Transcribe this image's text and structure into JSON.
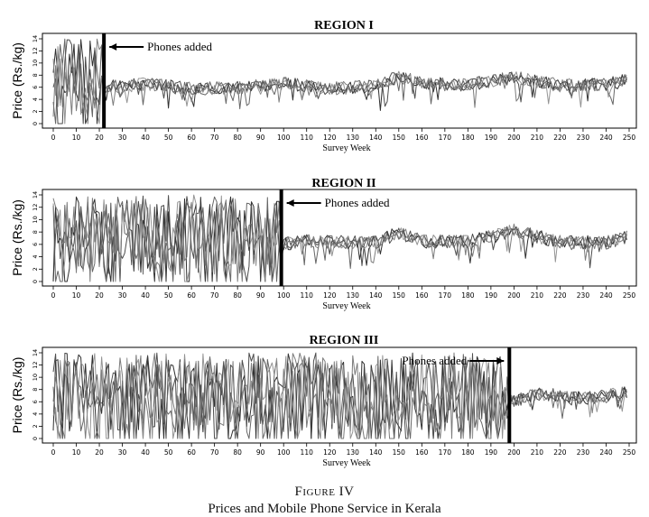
{
  "figure": {
    "label": "Figure IV",
    "caption": "Prices and Mobile Phone Service in Kerala"
  },
  "colors": {
    "series": [
      "#1a1a1a",
      "#3a3a3a",
      "#555555",
      "#6e6e6e",
      "#888888"
    ],
    "marker": "#000000"
  },
  "chart_data": [
    {
      "type": "line",
      "title": "REGION I",
      "xlabel": "Survey Week",
      "ylabel": "Price (Rs./kg)",
      "xlim": [
        0,
        250
      ],
      "ylim": [
        0,
        14
      ],
      "xticks": [
        0,
        10,
        20,
        30,
        40,
        50,
        60,
        70,
        80,
        90,
        100,
        110,
        120,
        130,
        140,
        150,
        160,
        170,
        180,
        190,
        200,
        210,
        220,
        230,
        240,
        250
      ],
      "yticks": [
        0,
        2,
        4,
        6,
        8,
        10,
        12,
        14
      ],
      "annotation": {
        "text": "Phones added",
        "x": 22,
        "arrow": "left"
      },
      "series_count": 5,
      "pre_phone_range": [
        0,
        14
      ],
      "post_phone_mean": 6.5,
      "notes_values": {
        "x": [
          0,
          20,
          40,
          60,
          80,
          100,
          120,
          140,
          150,
          160,
          180,
          200,
          220,
          240,
          250
        ],
        "y_mean": [
          6,
          6,
          6.5,
          5.8,
          5.9,
          6.6,
          5.8,
          6.1,
          7.8,
          6.6,
          6.4,
          7.6,
          6.3,
          6.5,
          7.2
        ]
      }
    },
    {
      "type": "line",
      "title": "REGION II",
      "xlabel": "Survey Week",
      "ylabel": "Price (Rs./kg)",
      "xlim": [
        0,
        250
      ],
      "ylim": [
        0,
        14
      ],
      "xticks": [
        0,
        10,
        20,
        30,
        40,
        50,
        60,
        70,
        80,
        90,
        100,
        110,
        120,
        130,
        140,
        150,
        160,
        170,
        180,
        190,
        200,
        210,
        220,
        230,
        240,
        250
      ],
      "yticks": [
        0,
        2,
        4,
        6,
        8,
        10,
        12,
        14
      ],
      "annotation": {
        "text": "Phones added",
        "x": 99,
        "arrow": "left"
      },
      "series_count": 5,
      "pre_phone_range": [
        0,
        14
      ],
      "post_phone_mean": 6.6,
      "notes_values": {
        "x": [
          0,
          20,
          40,
          60,
          80,
          99,
          110,
          140,
          150,
          160,
          180,
          200,
          220,
          240,
          250
        ],
        "y_mean": [
          6,
          6,
          6,
          6,
          6,
          6,
          6.5,
          6.3,
          7.9,
          6.5,
          6.4,
          8.2,
          6.4,
          6.3,
          7.2
        ]
      }
    },
    {
      "type": "line",
      "title": "REGION III",
      "xlabel": "Survey Week",
      "ylabel": "Price (Rs./kg)",
      "xlim": [
        0,
        250
      ],
      "ylim": [
        0,
        14
      ],
      "xticks": [
        0,
        10,
        20,
        30,
        40,
        50,
        60,
        70,
        80,
        90,
        100,
        110,
        120,
        130,
        140,
        150,
        160,
        170,
        180,
        190,
        200,
        210,
        220,
        230,
        240,
        250
      ],
      "yticks": [
        0,
        2,
        4,
        6,
        8,
        10,
        12,
        14
      ],
      "annotation": {
        "text": "Phones added",
        "x": 198,
        "arrow": "right"
      },
      "series_count": 5,
      "pre_phone_range": [
        0,
        14
      ],
      "post_phone_mean": 7.0,
      "notes_values": {
        "x": [
          0,
          50,
          100,
          150,
          198,
          210,
          220,
          230,
          240,
          250
        ],
        "y_mean": [
          6,
          6,
          6,
          6,
          6,
          7.3,
          7.1,
          6.6,
          6.9,
          7.6
        ]
      }
    }
  ]
}
